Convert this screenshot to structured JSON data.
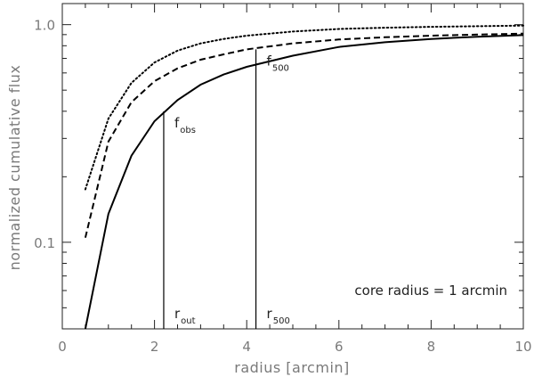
{
  "chart_data": {
    "type": "line",
    "xlabel": "radius [arcmin]",
    "ylabel": "normalized cumulative flux",
    "xlim": [
      0,
      10
    ],
    "ylim": [
      0.04,
      1.25
    ],
    "yscale": "log",
    "x_ticks": [
      0,
      2,
      4,
      6,
      8,
      10
    ],
    "x_tick_labels": [
      "0",
      "2",
      "4",
      "6",
      "8",
      "10"
    ],
    "x_minor_ticks": [
      0.5,
      1,
      1.5,
      2.5,
      3,
      3.5,
      4.5,
      5,
      5.5,
      6.5,
      7,
      7.5,
      8.5,
      9,
      9.5
    ],
    "y_ticks": [
      0.1,
      1.0
    ],
    "y_tick_labels": [
      "0.1",
      "1.0"
    ],
    "y_minor_ticks": [
      0.05,
      0.06,
      0.07,
      0.08,
      0.09,
      0.2,
      0.3,
      0.4,
      0.5,
      0.6,
      0.7,
      0.8,
      0.9
    ],
    "grid": false,
    "series": [
      {
        "style": "dotted",
        "x": [
          0.5,
          1.0,
          1.5,
          2.0,
          2.5,
          3.0,
          3.5,
          4.0,
          5.0,
          6.0,
          7.0,
          8.0,
          9.0,
          10.0
        ],
        "y": [
          0.175,
          0.37,
          0.54,
          0.67,
          0.76,
          0.82,
          0.86,
          0.89,
          0.93,
          0.955,
          0.968,
          0.977,
          0.984,
          0.99
        ]
      },
      {
        "style": "dashed",
        "x": [
          0.5,
          1.0,
          1.5,
          2.0,
          2.5,
          3.0,
          3.5,
          4.0,
          5.0,
          6.0,
          7.0,
          8.0,
          9.0,
          10.0
        ],
        "y": [
          0.105,
          0.29,
          0.44,
          0.55,
          0.63,
          0.69,
          0.73,
          0.77,
          0.82,
          0.855,
          0.875,
          0.89,
          0.9,
          0.91
        ]
      },
      {
        "style": "solid",
        "x": [
          0.5,
          1.0,
          1.5,
          2.0,
          2.5,
          3.0,
          3.5,
          4.0,
          5.0,
          6.0,
          7.0,
          8.0,
          9.0,
          10.0
        ],
        "y": [
          0.04,
          0.135,
          0.25,
          0.36,
          0.45,
          0.53,
          0.59,
          0.64,
          0.72,
          0.79,
          0.83,
          0.86,
          0.88,
          0.895
        ]
      }
    ],
    "markers": [
      {
        "x": 2.2,
        "y_top": 0.4,
        "label_main": "f",
        "label_sub": "obs",
        "foot_main": "r",
        "foot_sub": "out"
      },
      {
        "x": 4.2,
        "y_top": 0.77,
        "label_main": "f",
        "label_sub": "500",
        "foot_main": "r",
        "foot_sub": "500"
      }
    ],
    "annotation": "core radius = 1 arcmin"
  }
}
